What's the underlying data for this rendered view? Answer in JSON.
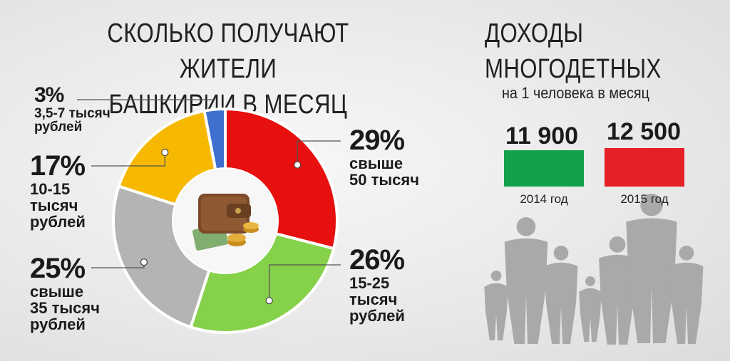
{
  "left_title_line1": "СКОЛЬКО ПОЛУЧАЮТ ЖИТЕЛИ",
  "left_title_line2": "БАШКИРИИ В МЕСЯЦ",
  "right_title_line1": "ДОХОДЫ",
  "right_title_line2": "МНОГОДЕТНЫХ",
  "right_subtitle": "на 1 человека в месяц",
  "colors": {
    "red": "#e80f0f",
    "green": "#86d14a",
    "gray": "#b4b4b4",
    "yellow": "#f6b800",
    "blue": "#3f6fcf",
    "bar_green": "#13a14b",
    "bar_red": "#e52026",
    "silhouette": "#a9a9a9"
  },
  "chart_data": [
    {
      "type": "pie",
      "title": "СКОЛЬКО ПОЛУЧАЮТ ЖИТЕЛИ БАШКИРИИ В МЕСЯЦ",
      "slices": [
        {
          "percent_label": "29%",
          "value": 29,
          "label": "свыше\n50 тысяч",
          "color": "#e80f0f"
        },
        {
          "percent_label": "26%",
          "value": 26,
          "label": "15-25\nтысяч\nрублей",
          "color": "#86d14a"
        },
        {
          "percent_label": "25%",
          "value": 25,
          "label": "свыше\n35 тысяч\nрублей",
          "color": "#b4b4b4"
        },
        {
          "percent_label": "17%",
          "value": 17,
          "label": "10-15\nтысяч\nрублей",
          "color": "#f6b800"
        },
        {
          "percent_label": "3%",
          "value": 3,
          "label": "3,5-7 тысяч\nрублей",
          "color": "#3f6fcf"
        }
      ],
      "donut": true
    },
    {
      "type": "bar",
      "title": "ДОХОДЫ МНОГОДЕТНЫХ на 1 человека в месяц",
      "categories": [
        "2014 год",
        "2015 год"
      ],
      "value_labels": [
        "11 900",
        "12 500"
      ],
      "values": [
        11900,
        12500
      ],
      "colors": [
        "#13a14b",
        "#e52026"
      ]
    }
  ]
}
